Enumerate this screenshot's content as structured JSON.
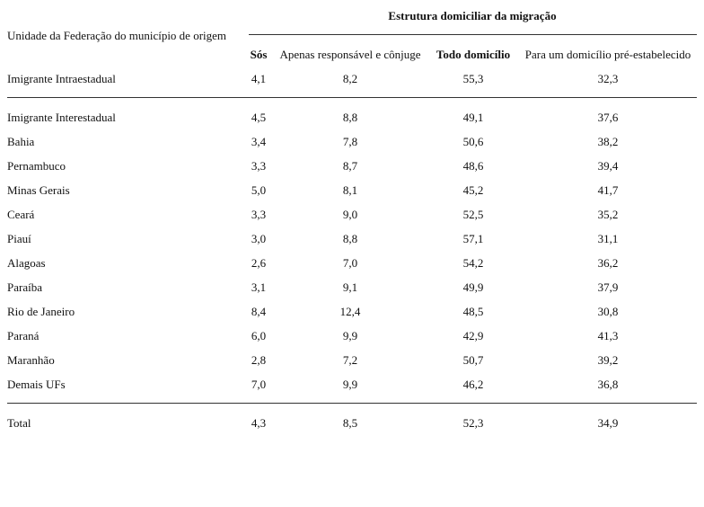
{
  "table": {
    "group_title": "Estrutura domiciliar da migração",
    "row_header": "Unidade da Federação do município de origem",
    "columns": [
      "Sós",
      "Apenas responsável e cônjuge",
      "Todo domicílio",
      "Para um domicílio pré-estabelecido"
    ],
    "sections": [
      {
        "rows": [
          {
            "label": "Imigrante Intraestadual",
            "values": [
              "4,1",
              "8,2",
              "55,3",
              "32,3"
            ]
          }
        ]
      },
      {
        "rows": [
          {
            "label": "Imigrante Interestadual",
            "values": [
              "4,5",
              "8,8",
              "49,1",
              "37,6"
            ]
          },
          {
            "label": "Bahia",
            "values": [
              "3,4",
              "7,8",
              "50,6",
              "38,2"
            ]
          },
          {
            "label": "Pernambuco",
            "values": [
              "3,3",
              "8,7",
              "48,6",
              "39,4"
            ]
          },
          {
            "label": "Minas Gerais",
            "values": [
              "5,0",
              "8,1",
              "45,2",
              "41,7"
            ]
          },
          {
            "label": "Ceará",
            "values": [
              "3,3",
              "9,0",
              "52,5",
              "35,2"
            ]
          },
          {
            "label": "Piauí",
            "values": [
              "3,0",
              "8,8",
              "57,1",
              "31,1"
            ]
          },
          {
            "label": "Alagoas",
            "values": [
              "2,6",
              "7,0",
              "54,2",
              "36,2"
            ]
          },
          {
            "label": "Paraíba",
            "values": [
              "3,1",
              "9,1",
              "49,9",
              "37,9"
            ]
          },
          {
            "label": "Rio de Janeiro",
            "values": [
              "8,4",
              "12,4",
              "48,5",
              "30,8"
            ]
          },
          {
            "label": "Paraná",
            "values": [
              "6,0",
              "9,9",
              "42,9",
              "41,3"
            ]
          },
          {
            "label": "Maranhão",
            "values": [
              "2,8",
              "7,2",
              "50,7",
              "39,2"
            ]
          },
          {
            "label": "Demais UFs",
            "values": [
              "7,0",
              "9,9",
              "46,2",
              "36,8"
            ]
          }
        ]
      },
      {
        "rows": [
          {
            "label": "Total",
            "values": [
              "4,3",
              "8,5",
              "52,3",
              "34,9"
            ]
          }
        ]
      }
    ]
  }
}
